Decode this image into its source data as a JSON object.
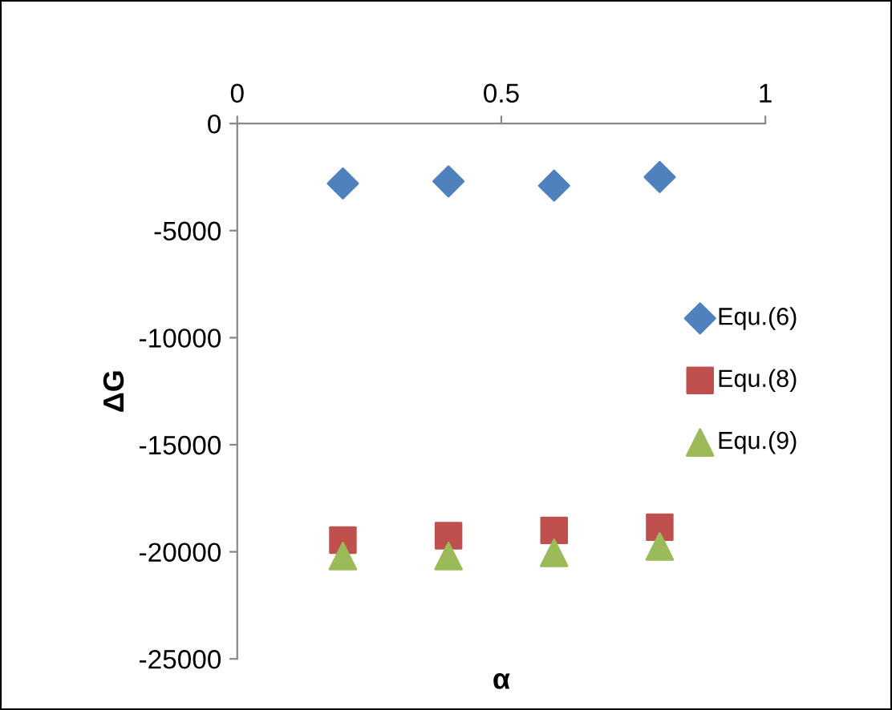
{
  "chart_data": {
    "type": "scatter",
    "xlabel": "α",
    "ylabel": "ΔG",
    "x": [
      0.2,
      0.4,
      0.6,
      0.8
    ],
    "series": [
      {
        "name": "Equ.(6)",
        "color": "#4f81bd",
        "marker": "diamond",
        "values": [
          -2800,
          -2700,
          -2900,
          -2500
        ]
      },
      {
        "name": "Equ.(8)",
        "color": "#c0504d",
        "marker": "square",
        "values": [
          -19450,
          -19250,
          -19000,
          -18850
        ]
      },
      {
        "name": "Equ.(9)",
        "color": "#9bbb59",
        "marker": "triangle",
        "values": [
          -20200,
          -20200,
          -20050,
          -19750
        ]
      }
    ],
    "xlim": [
      0,
      1
    ],
    "xticks": [
      0,
      0.5,
      1
    ],
    "ylim": [
      -25000,
      0
    ],
    "yticks": [
      -25000,
      -20000,
      -15000,
      -10000,
      -5000,
      0
    ],
    "grid": false,
    "legend": "right"
  }
}
